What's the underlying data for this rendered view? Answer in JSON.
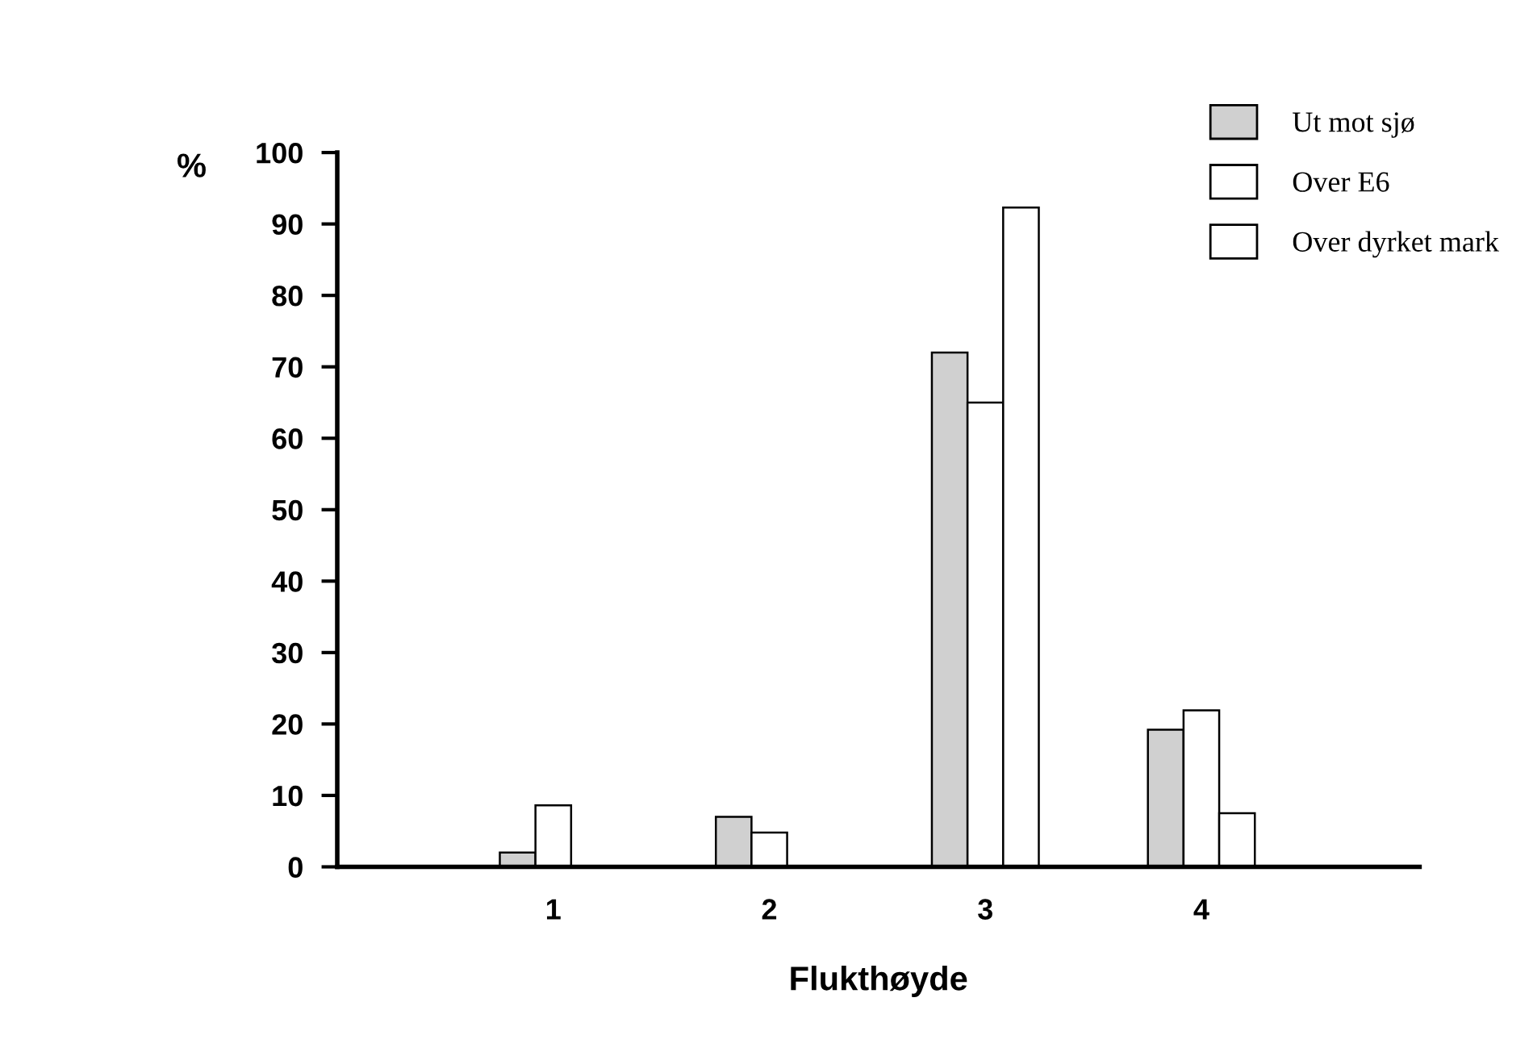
{
  "chart_data": {
    "type": "bar",
    "xlabel": "Flukthøyde",
    "ylabel": "%",
    "categories": [
      "1",
      "2",
      "3",
      "4"
    ],
    "series": [
      {
        "name": "Ut mot sjø",
        "color": "#d0d0d0",
        "values": [
          2.0,
          7.0,
          72,
          19.2
        ]
      },
      {
        "name": "Over E6",
        "color": "#ffffff",
        "values": [
          8.6,
          4.8,
          65,
          21.9
        ]
      },
      {
        "name": "Over dyrket mark",
        "color": "#ffffff",
        "values": [
          null,
          null,
          92.3,
          7.5
        ]
      }
    ],
    "ylim": [
      0,
      100
    ],
    "yticks": [
      0,
      10,
      20,
      30,
      40,
      50,
      60,
      70,
      80,
      90,
      100
    ],
    "grid": false,
    "legend": "top right"
  }
}
